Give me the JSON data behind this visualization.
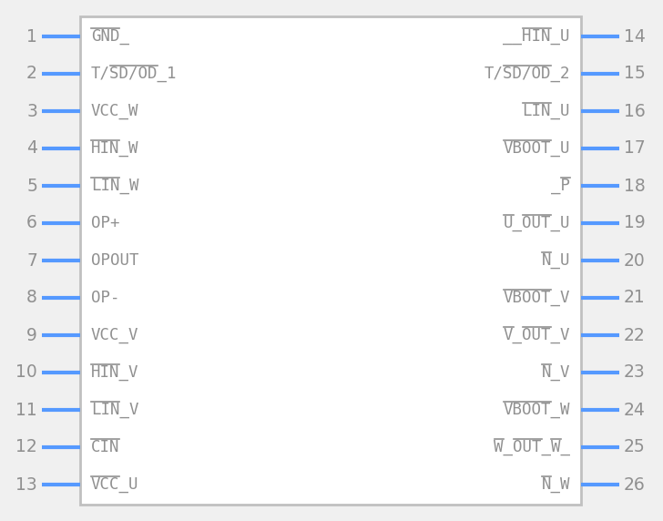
{
  "bg_color": "#f0f0f0",
  "body_edge_color": "#c0c0c0",
  "body_fill": "#ffffff",
  "pin_color": "#5599ff",
  "text_color": "#909090",
  "num_color": "#909090",
  "left_pins": [
    {
      "num": 1,
      "name": "GND_",
      "overlines": [
        [
          0,
          3
        ]
      ]
    },
    {
      "num": 2,
      "name": "T/SD/OD_1",
      "overlines": [
        [
          2,
          7
        ]
      ]
    },
    {
      "num": 3,
      "name": "VCC_W",
      "overlines": []
    },
    {
      "num": 4,
      "name": "HIN_W",
      "overlines": [
        [
          0,
          3
        ]
      ]
    },
    {
      "num": 5,
      "name": "LIN_W",
      "overlines": [
        [
          0,
          3
        ]
      ]
    },
    {
      "num": 6,
      "name": "OP+",
      "overlines": []
    },
    {
      "num": 7,
      "name": "OPOUT",
      "overlines": []
    },
    {
      "num": 8,
      "name": "OP-",
      "overlines": []
    },
    {
      "num": 9,
      "name": "VCC_V",
      "overlines": []
    },
    {
      "num": 10,
      "name": "HIN_V",
      "overlines": [
        [
          0,
          3
        ]
      ]
    },
    {
      "num": 11,
      "name": "LIN_V",
      "overlines": [
        [
          0,
          3
        ]
      ]
    },
    {
      "num": 12,
      "name": "CIN",
      "overlines": [
        [
          0,
          3
        ]
      ]
    },
    {
      "num": 13,
      "name": "VCC_U",
      "overlines": [
        [
          0,
          3
        ]
      ]
    }
  ],
  "right_pins": [
    {
      "num": 14,
      "name": "__HIN_U",
      "overlines": [
        [
          2,
          5
        ]
      ]
    },
    {
      "num": 15,
      "name": "T/SD/OD_2",
      "overlines": [
        [
          2,
          7
        ]
      ]
    },
    {
      "num": 16,
      "name": "LIN_U",
      "overlines": [
        [
          0,
          3
        ]
      ]
    },
    {
      "num": 17,
      "name": "VBOOT_U",
      "overlines": [
        [
          0,
          5
        ]
      ]
    },
    {
      "num": 18,
      "name": "_P",
      "overlines": [
        [
          1,
          2
        ]
      ]
    },
    {
      "num": 19,
      "name": "U_OUT_U",
      "overlines": [
        [
          0,
          1
        ],
        [
          2,
          5
        ]
      ]
    },
    {
      "num": 20,
      "name": "N_U",
      "overlines": [
        [
          0,
          1
        ]
      ]
    },
    {
      "num": 21,
      "name": "VBOOT_V",
      "overlines": [
        [
          0,
          5
        ]
      ]
    },
    {
      "num": 22,
      "name": "V_OUT_V",
      "overlines": [
        [
          0,
          1
        ],
        [
          2,
          5
        ]
      ]
    },
    {
      "num": 23,
      "name": "N_V",
      "overlines": [
        [
          0,
          1
        ]
      ]
    },
    {
      "num": 24,
      "name": "VBOOT_W",
      "overlines": [
        [
          0,
          5
        ]
      ]
    },
    {
      "num": 25,
      "name": "W_OUT_W_",
      "overlines": [
        [
          0,
          1
        ],
        [
          2,
          5
        ],
        [
          6,
          7
        ]
      ]
    },
    {
      "num": 26,
      "name": "N_W",
      "overlines": [
        [
          0,
          1
        ]
      ]
    }
  ],
  "fig_width": 7.28,
  "fig_height": 5.72,
  "dpi": 100
}
